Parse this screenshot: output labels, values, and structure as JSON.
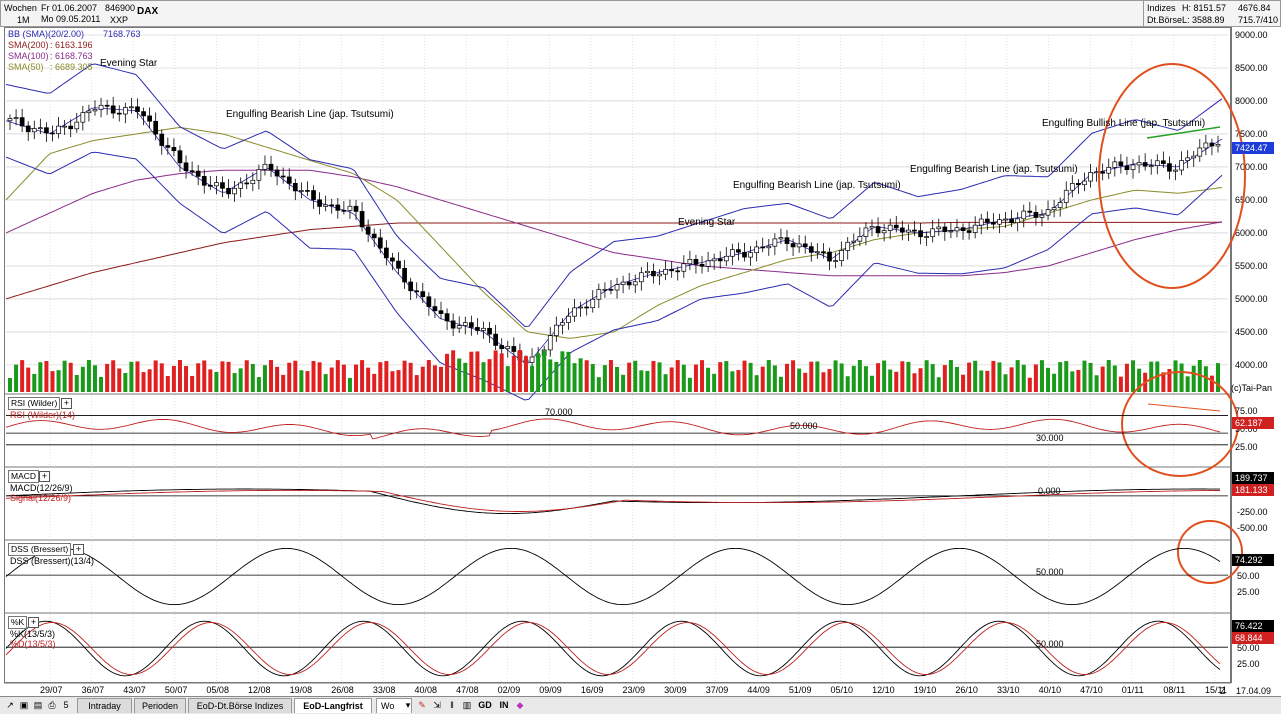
{
  "header": {
    "period": "Wochen",
    "from": "Fr 01.06.2007",
    "to": "Mo 09.05.2011",
    "interval": "1M",
    "code": "846900",
    "exchange": "XXP",
    "name": "DAX",
    "index_label": "Indizes",
    "exchange_label": "Dt.Börse",
    "high": "H: 8151.57",
    "low": "L: 3588.89",
    "val1": "4676.84",
    "val2": "715.7/410"
  },
  "legend": {
    "bb": "BB (SMA)(20/2.00)",
    "bb_val": "7168.763",
    "sma200": "SMA(200)",
    "sma200_val": ": 6163.196",
    "sma100": "SMA(100)",
    "sma100_val": ": 6168.763",
    "sma50": "SMA(50)",
    "sma50_val": ": 6689.305"
  },
  "annotations": {
    "evening_star_1": "Evening Star",
    "engulfing_1": "Engulfing Bearish Line (jap. Tsutsumi)",
    "evening_star_2": "Evening Star",
    "engulfing_2": "Engulfing Bearish Line (jap. Tsutsumi)",
    "engulfing_3": "Engulfing Bearish Line (jap. Tsutsumi)",
    "engulfing_bull": "Engulfing Bullish Line (jap. Tsutsumi)",
    "copyright": "(c)Tai-Pan"
  },
  "panels": {
    "rsi_name": "RSI (Wilder)",
    "rsi_sub": "RSI (Wilder)(14)",
    "rsi_70": "70.000",
    "rsi_50": "50.000",
    "rsi_30": "30.000",
    "rsi_value": "62.187",
    "macd_name": "MACD",
    "macd_sub": "MACD(12/26/9)",
    "signal_sub": "Signal(12/26/9)",
    "macd_zero": "0.000",
    "macd_value": "189.737",
    "signal_value": "181.133",
    "dss_name": "DSS (Bressert)",
    "dss_sub": "DSS (Bressert)(13/4)",
    "dss_50": "50.000",
    "dss_value": "74.292",
    "k_name": "%K",
    "k_sub": "%K(13/5/3)",
    "d_sub": "%D(13/5/3)",
    "k_50": "50.000",
    "k_value": "76.422",
    "d_value": "68.844"
  },
  "price_badge": "7424.47",
  "axis": {
    "price_ticks": [
      "9000.00",
      "8500.00",
      "8000.00",
      "7500.00",
      "7000.00",
      "6500.00",
      "6000.00",
      "5500.00",
      "5000.00",
      "4500.00",
      "4000.00"
    ],
    "rsi_ticks": [
      "75.00",
      "50.00",
      "25.00"
    ],
    "macd_ticks": [
      "-250.00",
      "-500.00"
    ],
    "dss_ticks": [
      "50.00",
      "25.00"
    ],
    "k_ticks": [
      "50.00",
      "25.00"
    ],
    "x_ticks": [
      "29|07",
      "36|07",
      "43|07",
      "50|07",
      "05|08",
      "12|08",
      "19|08",
      "26|08",
      "33|08",
      "40|08",
      "47|08",
      "02|09",
      "09|09",
      "16|09",
      "23|09",
      "30|09",
      "37|09",
      "44|09",
      "51|09",
      "05|10",
      "12|10",
      "19|10",
      "26|10",
      "33|10",
      "40|10",
      "47|10",
      "01|11",
      "08|11",
      "15|11"
    ],
    "x_end": "Z",
    "date_end": "17.04.09"
  },
  "tabs": [
    {
      "label": "Intraday"
    },
    {
      "label": "Perioden"
    },
    {
      "label": "EoD-Dt.Börse Indizes"
    },
    {
      "label": "EoD-Langfrist"
    }
  ],
  "toolbar": {
    "dropdown": "Wo",
    "gd": "GD",
    "in": "IN",
    "icon_5": "5"
  },
  "colors": {
    "candle_up": "#ffffff",
    "candle_down": "#000000",
    "vol_up": "#1a9a1a",
    "vol_down": "#e02020",
    "bb": "#2b2bb0",
    "sma200": "#8b1a1a",
    "sma100": "#8a2a8a",
    "sma50": "#8a8a2a",
    "highlight": "#e0501e",
    "trend": "#22a022"
  },
  "chart_data": {
    "type": "line",
    "x": [
      "29/07",
      "36/07",
      "43/07",
      "50/07",
      "05/08",
      "12/08",
      "19/08",
      "26/08",
      "33/08",
      "40/08",
      "47/08",
      "02/09",
      "09/09",
      "16/09",
      "23/09",
      "30/09",
      "37/09",
      "44/09",
      "51/09",
      "05/10",
      "12/10",
      "19/10",
      "26/10",
      "33/10",
      "40/10",
      "47/10",
      "01/11",
      "08/11",
      "15/11"
    ],
    "series": [
      {
        "name": "DAX",
        "values": [
          7700,
          7500,
          7900,
          7850,
          7000,
          6600,
          7000,
          6500,
          6300,
          5400,
          4700,
          4500,
          4000,
          4800,
          5200,
          5400,
          5550,
          5700,
          5900,
          5600,
          6100,
          6000,
          6050,
          6200,
          6300,
          6900,
          7050,
          7000,
          7424
        ]
      },
      {
        "name": "SMA(200)",
        "values": [
          5000,
          5200,
          5400,
          5550,
          5700,
          5850,
          5950,
          6050,
          6100,
          6150,
          6150,
          6150,
          6150,
          6150,
          6150,
          6150,
          6150,
          6150,
          6150,
          6150,
          6150,
          6150,
          6160,
          6160,
          6160,
          6160,
          6160,
          6160,
          6163
        ]
      },
      {
        "name": "SMA(100)",
        "values": [
          6000,
          6300,
          6600,
          6800,
          6900,
          6950,
          6950,
          6950,
          6850,
          6700,
          6500,
          6300,
          6100,
          5900,
          5700,
          5600,
          5500,
          5450,
          5400,
          5350,
          5350,
          5350,
          5350,
          5400,
          5500,
          5700,
          5900,
          6050,
          6168
        ]
      },
      {
        "name": "SMA(50)",
        "values": [
          6500,
          7200,
          7400,
          7500,
          7600,
          7500,
          7300,
          7100,
          6900,
          6500,
          5800,
          5100,
          4500,
          4400,
          4500,
          4900,
          5200,
          5400,
          5600,
          5700,
          5900,
          6000,
          6050,
          6100,
          6300,
          6500,
          6650,
          6600,
          6689
        ]
      }
    ],
    "ylim": [
      3588.89,
      9000
    ],
    "legend": "top-left",
    "grid": true
  }
}
